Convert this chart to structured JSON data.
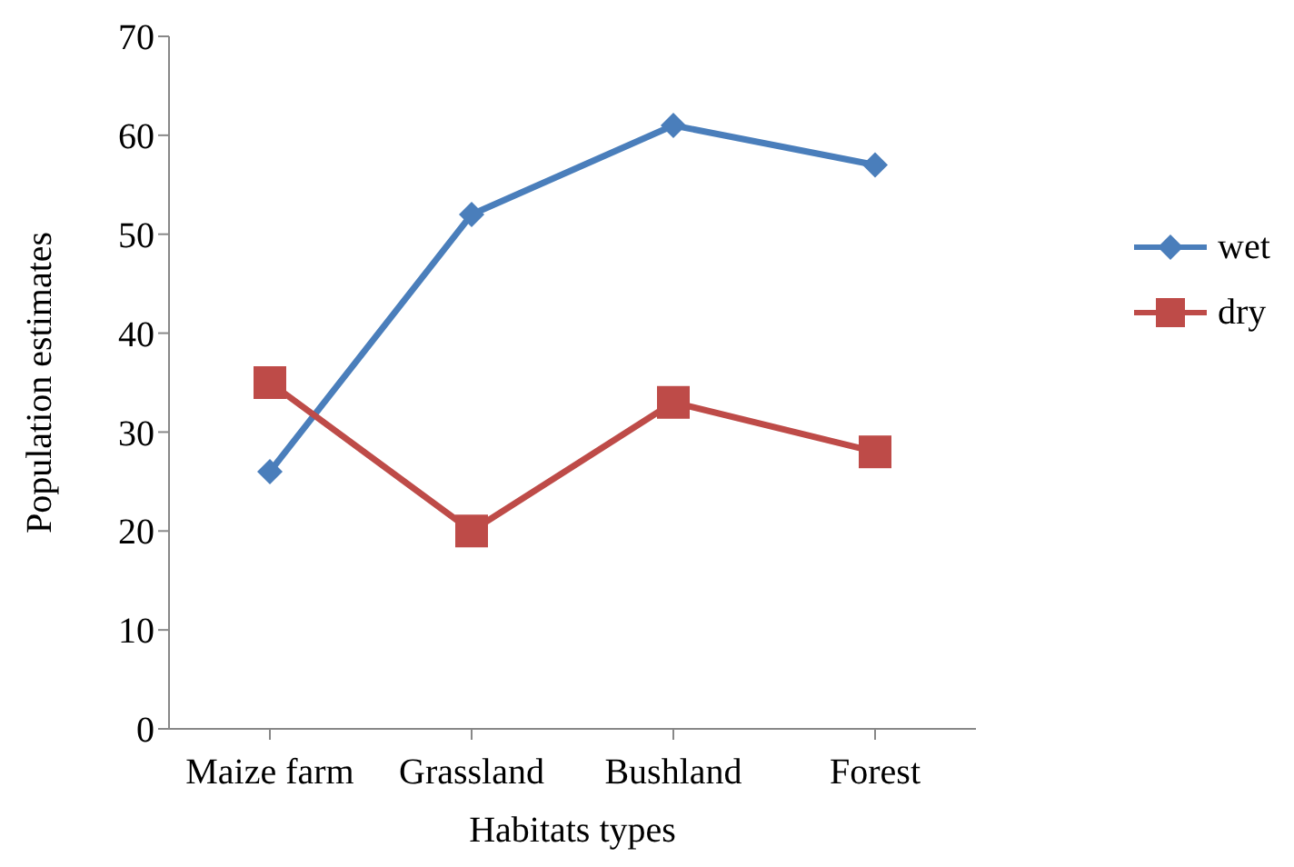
{
  "chart_data": {
    "type": "line",
    "xlabel": "Habitats types",
    "ylabel": "Population estimates",
    "categories": [
      "Maize farm",
      "Grassland",
      "Bushland",
      "Forest"
    ],
    "series": [
      {
        "name": "wet",
        "color": "#4a7ebb",
        "values": [
          26,
          52,
          61,
          57
        ],
        "marker": "diamond"
      },
      {
        "name": "dry",
        "color": "#be4b48",
        "values": [
          35,
          20,
          33,
          28
        ],
        "marker": "square"
      }
    ],
    "ylim": [
      0,
      70
    ],
    "yticks": [
      0,
      10,
      20,
      30,
      40,
      50,
      60,
      70
    ],
    "grid": false,
    "legend": "right"
  }
}
